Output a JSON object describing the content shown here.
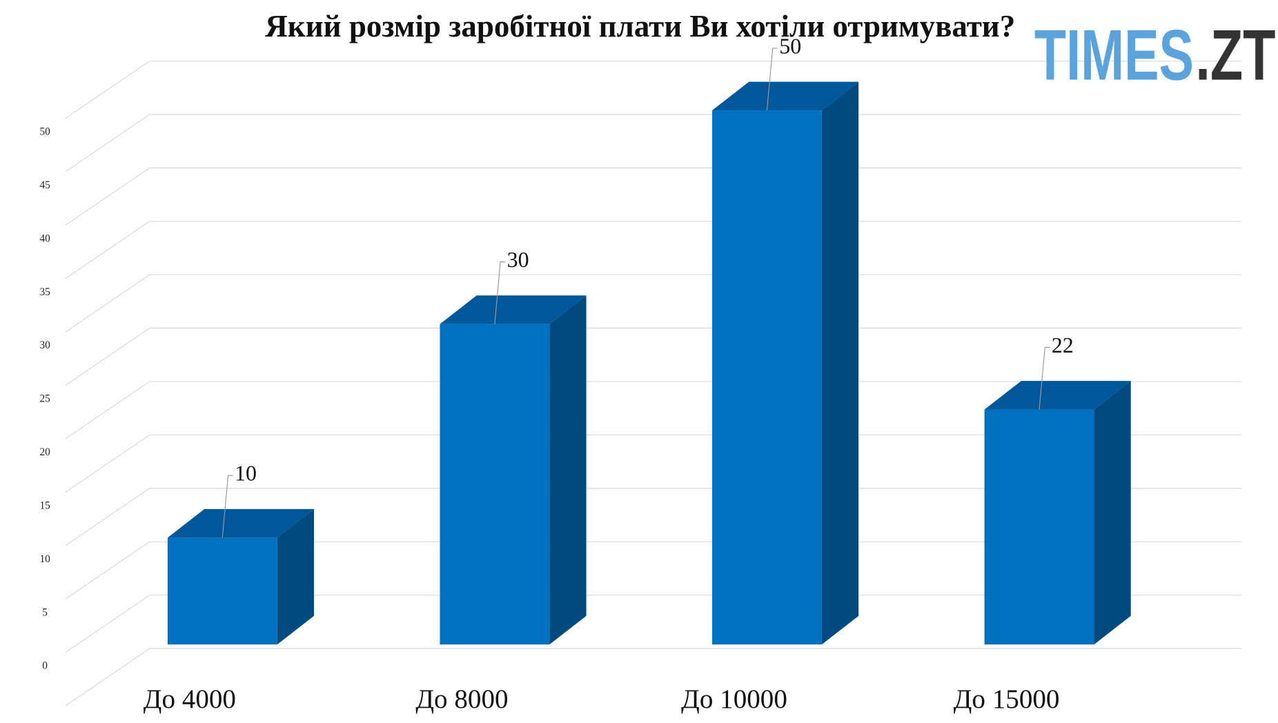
{
  "chart_data": {
    "type": "bar3d",
    "title": "Який розмір заробітної плати Ви хотіли отримувати?",
    "watermark": [
      "TIMES",
      ".ZT"
    ],
    "categories": [
      "До 4000",
      "До 8000",
      "До 10000",
      "До 15000"
    ],
    "values": [
      10,
      30,
      50,
      22
    ],
    "color": "#0070c0",
    "ylim": [
      0,
      55
    ],
    "yticks": [
      0,
      5,
      10,
      15,
      20,
      25,
      30,
      35,
      40,
      45,
      50
    ],
    "grid": true
  }
}
